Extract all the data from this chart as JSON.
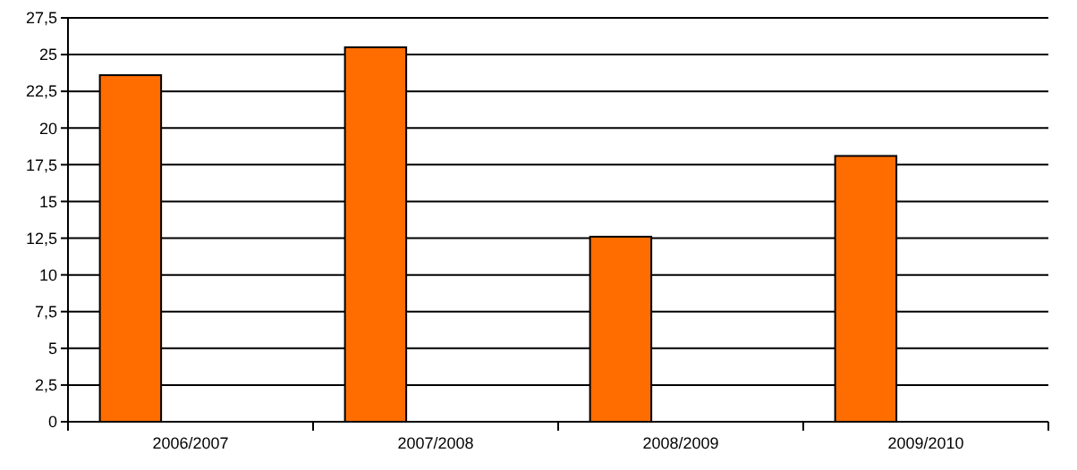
{
  "chart_data": {
    "type": "bar",
    "categories": [
      "2006/2007",
      "2007/2008",
      "2008/2009",
      "2009/2010"
    ],
    "values": [
      23.6,
      25.5,
      12.6,
      18.1
    ],
    "color": "#ff6d00",
    "ylim": [
      0,
      27.5
    ],
    "yticks": [
      0,
      {
        "value": 2.5,
        "label": "2,5"
      },
      5,
      {
        "value": 7.5,
        "label": "7,5"
      },
      10,
      {
        "value": 12.5,
        "label": "12,5"
      },
      15,
      {
        "value": 17.5,
        "label": "17,5"
      },
      20,
      {
        "value": 22.5,
        "label": "22,5"
      },
      25,
      {
        "value": 27.5,
        "label": "27,5"
      }
    ],
    "grid": "y"
  }
}
